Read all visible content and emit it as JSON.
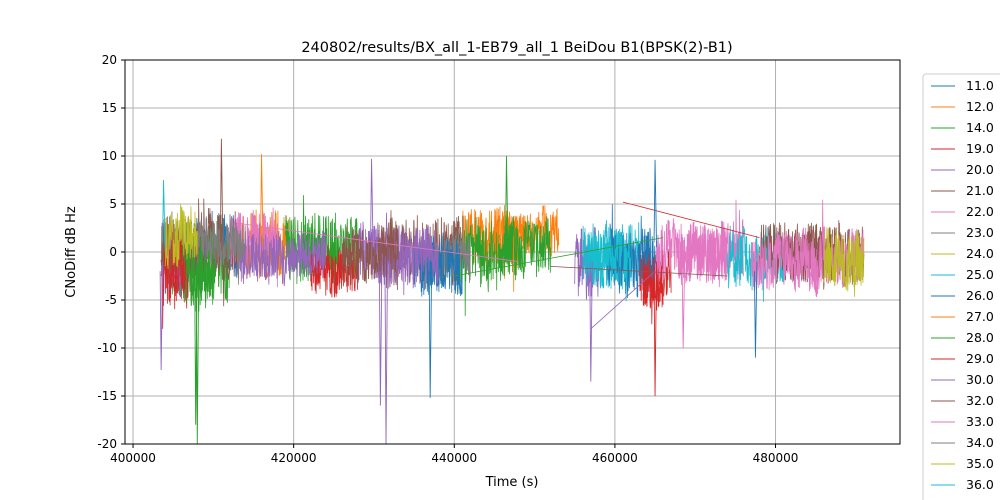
{
  "chart_data": {
    "type": "line",
    "title": "240802/results/BX_all_1-EB79_all_1 BeiDou B1(BPSK(2)-B1)",
    "xlabel": "Time (s)",
    "ylabel": "CNoDiff dB Hz",
    "xlim": [
      399000,
      495500
    ],
    "ylim": [
      -20,
      20
    ],
    "x_ticks": [
      400000,
      420000,
      440000,
      460000,
      480000
    ],
    "y_ticks": [
      -20,
      -15,
      -10,
      -5,
      0,
      5,
      10,
      15,
      20
    ],
    "grid": true,
    "legend_position": "right, outside plot",
    "series": [
      {
        "name": "11.0",
        "color": "#1f77b4",
        "segments": [
          {
            "x0": 407500,
            "x1": 413000,
            "center": 0.5,
            "amp": 3,
            "seed": 11
          }
        ]
      },
      {
        "name": "12.0",
        "color": "#ff7f0e",
        "segments": [
          {
            "x0": 413000,
            "x1": 420000,
            "center": 1.0,
            "amp": 3.5,
            "seed": 12
          },
          {
            "x0": 441000,
            "x1": 448000,
            "center": 1.5,
            "amp": 3,
            "seed": 121
          }
        ]
      },
      {
        "name": "14.0",
        "color": "#2ca02c",
        "segments": [
          {
            "x0": 404500,
            "x1": 412000,
            "center": -1.0,
            "amp": 4,
            "seed": 14
          },
          {
            "x0": 419000,
            "x1": 428000,
            "center": 0.5,
            "amp": 3.5,
            "seed": 141
          },
          {
            "x0": 440000,
            "x1": 447000,
            "center": 0.0,
            "amp": 3.5,
            "seed": 142
          }
        ]
      },
      {
        "name": "19.0",
        "color": "#d62728",
        "segments": [
          {
            "x0": 403500,
            "x1": 407000,
            "center": -1.5,
            "amp": 4,
            "seed": 19
          },
          {
            "x0": 422000,
            "x1": 428000,
            "center": -2.0,
            "amp": 2.5,
            "seed": 191
          },
          {
            "x0": 463000,
            "x1": 467000,
            "center": -2.5,
            "amp": 3,
            "seed": 192
          }
        ]
      },
      {
        "name": "20.0",
        "color": "#9467bd",
        "segments": [
          {
            "x0": 403500,
            "x1": 406000,
            "center": -0.5,
            "amp": 4,
            "seed": 20
          },
          {
            "x0": 428000,
            "x1": 434000,
            "center": -0.5,
            "amp": 3,
            "seed": 201
          },
          {
            "x0": 455000,
            "x1": 458000,
            "center": -1.0,
            "amp": 3.5,
            "seed": 202
          }
        ]
      },
      {
        "name": "21.0",
        "color": "#8c564b",
        "segments": [
          {
            "x0": 403500,
            "x1": 413000,
            "center": 0.5,
            "amp": 3.5,
            "seed": 21
          },
          {
            "x0": 432000,
            "x1": 441000,
            "center": 0.0,
            "amp": 3.5,
            "seed": 211
          },
          {
            "x0": 484000,
            "x1": 491000,
            "center": -0.5,
            "amp": 3,
            "seed": 212
          }
        ]
      },
      {
        "name": "22.0",
        "color": "#e377c2",
        "segments": [
          {
            "x0": 412000,
            "x1": 418000,
            "center": 1.5,
            "amp": 3,
            "seed": 22
          },
          {
            "x0": 468000,
            "x1": 476000,
            "center": 0.0,
            "amp": 3,
            "seed": 221
          },
          {
            "x0": 481000,
            "x1": 491000,
            "center": -0.5,
            "amp": 3,
            "seed": 222
          }
        ]
      },
      {
        "name": "23.0",
        "color": "#7f7f7f",
        "segments": [
          {
            "x0": 436000,
            "x1": 442000,
            "center": -0.5,
            "amp": 2.5,
            "seed": 23
          }
        ]
      },
      {
        "name": "24.0",
        "color": "#bcbd22",
        "segments": [
          {
            "x0": 486000,
            "x1": 491000,
            "center": -1.0,
            "amp": 3,
            "seed": 24
          }
        ]
      },
      {
        "name": "25.0",
        "color": "#17becf",
        "segments": [
          {
            "x0": 457000,
            "x1": 463000,
            "center": -0.5,
            "amp": 3.5,
            "seed": 25
          },
          {
            "x0": 474000,
            "x1": 481000,
            "center": -0.5,
            "amp": 3,
            "seed": 251
          }
        ]
      },
      {
        "name": "26.0",
        "color": "#1f77b4",
        "segments": [
          {
            "x0": 435000,
            "x1": 441000,
            "center": -1.5,
            "amp": 3,
            "seed": 26
          },
          {
            "x0": 459000,
            "x1": 465000,
            "center": -1.0,
            "amp": 3.5,
            "seed": 261
          }
        ]
      },
      {
        "name": "27.0",
        "color": "#ff7f0e",
        "segments": [
          {
            "x0": 445000,
            "x1": 453000,
            "center": 2.0,
            "amp": 2.5,
            "seed": 27
          }
        ]
      },
      {
        "name": "28.0",
        "color": "#2ca02c",
        "segments": [
          {
            "x0": 406000,
            "x1": 410000,
            "center": -2.0,
            "amp": 4,
            "seed": 28
          },
          {
            "x0": 446000,
            "x1": 452000,
            "center": 0.5,
            "amp": 3,
            "seed": 281
          }
        ]
      },
      {
        "name": "29.0",
        "color": "#d62728",
        "segments": [
          {
            "x0": 403800,
            "x1": 406500,
            "center": -2.0,
            "amp": 4,
            "seed": 29
          },
          {
            "x0": 463500,
            "x1": 466000,
            "center": -3.0,
            "amp": 3,
            "seed": 291
          }
        ]
      },
      {
        "name": "30.0",
        "color": "#9467bd",
        "segments": [
          {
            "x0": 413000,
            "x1": 424000,
            "center": -0.5,
            "amp": 2.5,
            "seed": 30
          },
          {
            "x0": 430000,
            "x1": 438000,
            "center": -0.5,
            "amp": 3,
            "seed": 301
          }
        ]
      },
      {
        "name": "32.0",
        "color": "#8c564b",
        "segments": [
          {
            "x0": 426000,
            "x1": 433000,
            "center": 0.0,
            "amp": 3,
            "seed": 32
          },
          {
            "x0": 478000,
            "x1": 486000,
            "center": 0.0,
            "amp": 3,
            "seed": 321
          }
        ]
      },
      {
        "name": "33.0",
        "color": "#e377c2",
        "segments": [
          {
            "x0": 465000,
            "x1": 474000,
            "center": 0.0,
            "amp": 3,
            "seed": 33
          },
          {
            "x0": 477000,
            "x1": 486000,
            "center": -1.0,
            "amp": 3,
            "seed": 331
          }
        ]
      },
      {
        "name": "34.0",
        "color": "#7f7f7f",
        "segments": [
          {
            "x0": 408000,
            "x1": 414000,
            "center": 1.0,
            "amp": 2.5,
            "seed": 34
          }
        ]
      },
      {
        "name": "35.0",
        "color": "#bcbd22",
        "segments": [
          {
            "x0": 404000,
            "x1": 408000,
            "center": 1.5,
            "amp": 3,
            "seed": 35
          }
        ]
      },
      {
        "name": "36.0",
        "color": "#17becf",
        "segments": [
          {
            "x0": 456000,
            "x1": 462000,
            "center": -0.5,
            "amp": 3,
            "seed": 36
          }
        ]
      }
    ],
    "connector_lines": [
      {
        "color": "#9467bd",
        "from": [
          457000,
          -8.0
        ],
        "to": [
          465000,
          -2.0
        ]
      },
      {
        "color": "#d62728",
        "from": [
          461000,
          5.2
        ],
        "to": [
          478000,
          1.5
        ]
      },
      {
        "color": "#e377c2",
        "from": [
          413000,
          3.0
        ],
        "to": [
          448000,
          -1.0
        ]
      },
      {
        "color": "#2ca02c",
        "from": [
          440000,
          -2.5
        ],
        "to": [
          466000,
          1.5
        ]
      },
      {
        "color": "#8c564b",
        "from": [
          452000,
          -1.5
        ],
        "to": [
          474000,
          -2.5
        ]
      }
    ],
    "spikes": [
      {
        "color": "#2ca02c",
        "x": 408000,
        "y": -20
      },
      {
        "color": "#2ca02c",
        "x": 407800,
        "y": -18
      },
      {
        "color": "#9467bd",
        "x": 431500,
        "y": -20
      },
      {
        "color": "#9467bd",
        "x": 430800,
        "y": -16
      },
      {
        "color": "#8c564b",
        "x": 411000,
        "y": 11.8
      },
      {
        "color": "#ff7f0e",
        "x": 416000,
        "y": 10.2
      },
      {
        "color": "#9467bd",
        "x": 429700,
        "y": 9.7
      },
      {
        "color": "#2ca02c",
        "x": 446500,
        "y": 10.0
      },
      {
        "color": "#1f77b4",
        "x": 465000,
        "y": 9.6
      },
      {
        "color": "#d62728",
        "x": 465000,
        "y": -15.0
      },
      {
        "color": "#1f77b4",
        "x": 437000,
        "y": -15.2
      },
      {
        "color": "#9467bd",
        "x": 457000,
        "y": -13.5
      },
      {
        "color": "#9467bd",
        "x": 403500,
        "y": -12.3
      },
      {
        "color": "#17becf",
        "x": 403800,
        "y": 7.5
      },
      {
        "color": "#1f77b4",
        "x": 477500,
        "y": -11.0
      },
      {
        "color": "#e377c2",
        "x": 468500,
        "y": -10.0
      }
    ]
  }
}
